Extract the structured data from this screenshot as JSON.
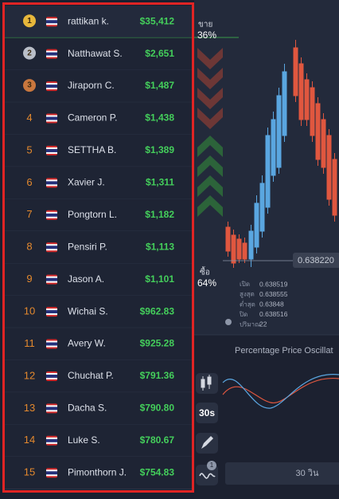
{
  "leaderboard": {
    "rows": [
      {
        "rank": "1",
        "name": "rattikan k.",
        "amount": "$35,412"
      },
      {
        "rank": "2",
        "name": "Natthawat S.",
        "amount": "$2,651"
      },
      {
        "rank": "3",
        "name": "Jiraporn C.",
        "amount": "$1,487"
      },
      {
        "rank": "4",
        "name": "Cameron P.",
        "amount": "$1,438"
      },
      {
        "rank": "5",
        "name": "SETTHA B.",
        "amount": "$1,389"
      },
      {
        "rank": "6",
        "name": "Xavier J.",
        "amount": "$1,311"
      },
      {
        "rank": "7",
        "name": "Pongtorn L.",
        "amount": "$1,182"
      },
      {
        "rank": "8",
        "name": "Pensiri P.",
        "amount": "$1,113"
      },
      {
        "rank": "9",
        "name": "Jason A.",
        "amount": "$1,101"
      },
      {
        "rank": "10",
        "name": "Wichai S.",
        "amount": "$962.83"
      },
      {
        "rank": "11",
        "name": "Avery W.",
        "amount": "$925.28"
      },
      {
        "rank": "12",
        "name": "Chuchat P.",
        "amount": "$791.36"
      },
      {
        "rank": "13",
        "name": "Dacha S.",
        "amount": "$790.80"
      },
      {
        "rank": "14",
        "name": "Luke S.",
        "amount": "$780.67"
      },
      {
        "rank": "15",
        "name": "Pimonthorn J.",
        "amount": "$754.83"
      }
    ]
  },
  "chart": {
    "sell_label": "ขาย",
    "sell_percent": "36%",
    "buy_label": "ซื้อ",
    "buy_percent": "64%",
    "current_price": "0.638220",
    "info": [
      {
        "label": "เปิด",
        "value": "0.638519"
      },
      {
        "label": "สูงสุด",
        "value": "0.638555"
      },
      {
        "label": "ต่ำสุด",
        "value": "0.63848"
      },
      {
        "label": "ปิด",
        "value": "0.638516"
      },
      {
        "label": "ปริมาณ",
        "value": "22"
      }
    ],
    "indicator_title": "Percentage Price Oscillat",
    "expiry": "30s",
    "indicator_count": "1",
    "duration": "30 วิน"
  }
}
